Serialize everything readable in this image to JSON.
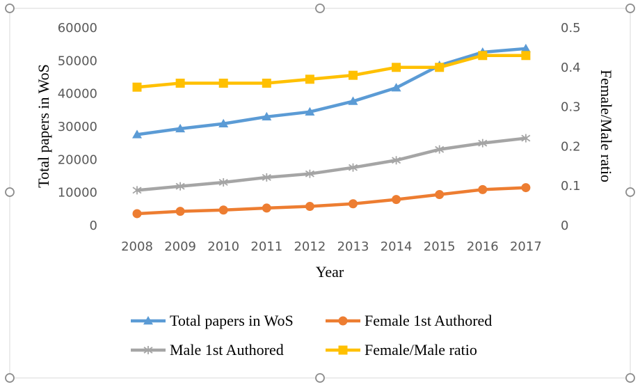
{
  "chart_data": {
    "type": "line",
    "x": [
      "2008",
      "2009",
      "2010",
      "2011",
      "2012",
      "2013",
      "2014",
      "2015",
      "2016",
      "2017"
    ],
    "xlabel": "Year",
    "ylabel": "Total papers in WoS",
    "y2label": "Female/Male ratio",
    "ylim": [
      0,
      60000
    ],
    "y2lim": [
      0,
      0.5
    ],
    "yticks": [
      "0",
      "10000",
      "20000",
      "30000",
      "40000",
      "50000",
      "60000"
    ],
    "y2ticks": [
      "0",
      "0.1",
      "0.2",
      "0.3",
      "0.4",
      "0.5"
    ],
    "grid": false,
    "legend_position": "bottom",
    "series": [
      {
        "name": "Total papers in WoS",
        "axis": "left",
        "marker": "triangle",
        "color": "#5B9BD5",
        "values": [
          27600,
          29400,
          30900,
          33000,
          34500,
          37700,
          41800,
          48600,
          52600,
          53700
        ]
      },
      {
        "name": "Female 1st Authored",
        "axis": "left",
        "marker": "circle",
        "color": "#ED7D31",
        "values": [
          3600,
          4300,
          4700,
          5300,
          5800,
          6600,
          7900,
          9400,
          10900,
          11500
        ]
      },
      {
        "name": "Male 1st Authored",
        "axis": "left",
        "marker": "asterisk",
        "color": "#A5A5A5",
        "values": [
          10700,
          11900,
          13100,
          14600,
          15700,
          17600,
          19800,
          23100,
          25000,
          26500
        ]
      },
      {
        "name": "Female/Male ratio",
        "axis": "right",
        "marker": "square",
        "color": "#FFC000",
        "values": [
          0.35,
          0.36,
          0.36,
          0.36,
          0.37,
          0.38,
          0.4,
          0.4,
          0.43,
          0.43
        ]
      }
    ]
  }
}
